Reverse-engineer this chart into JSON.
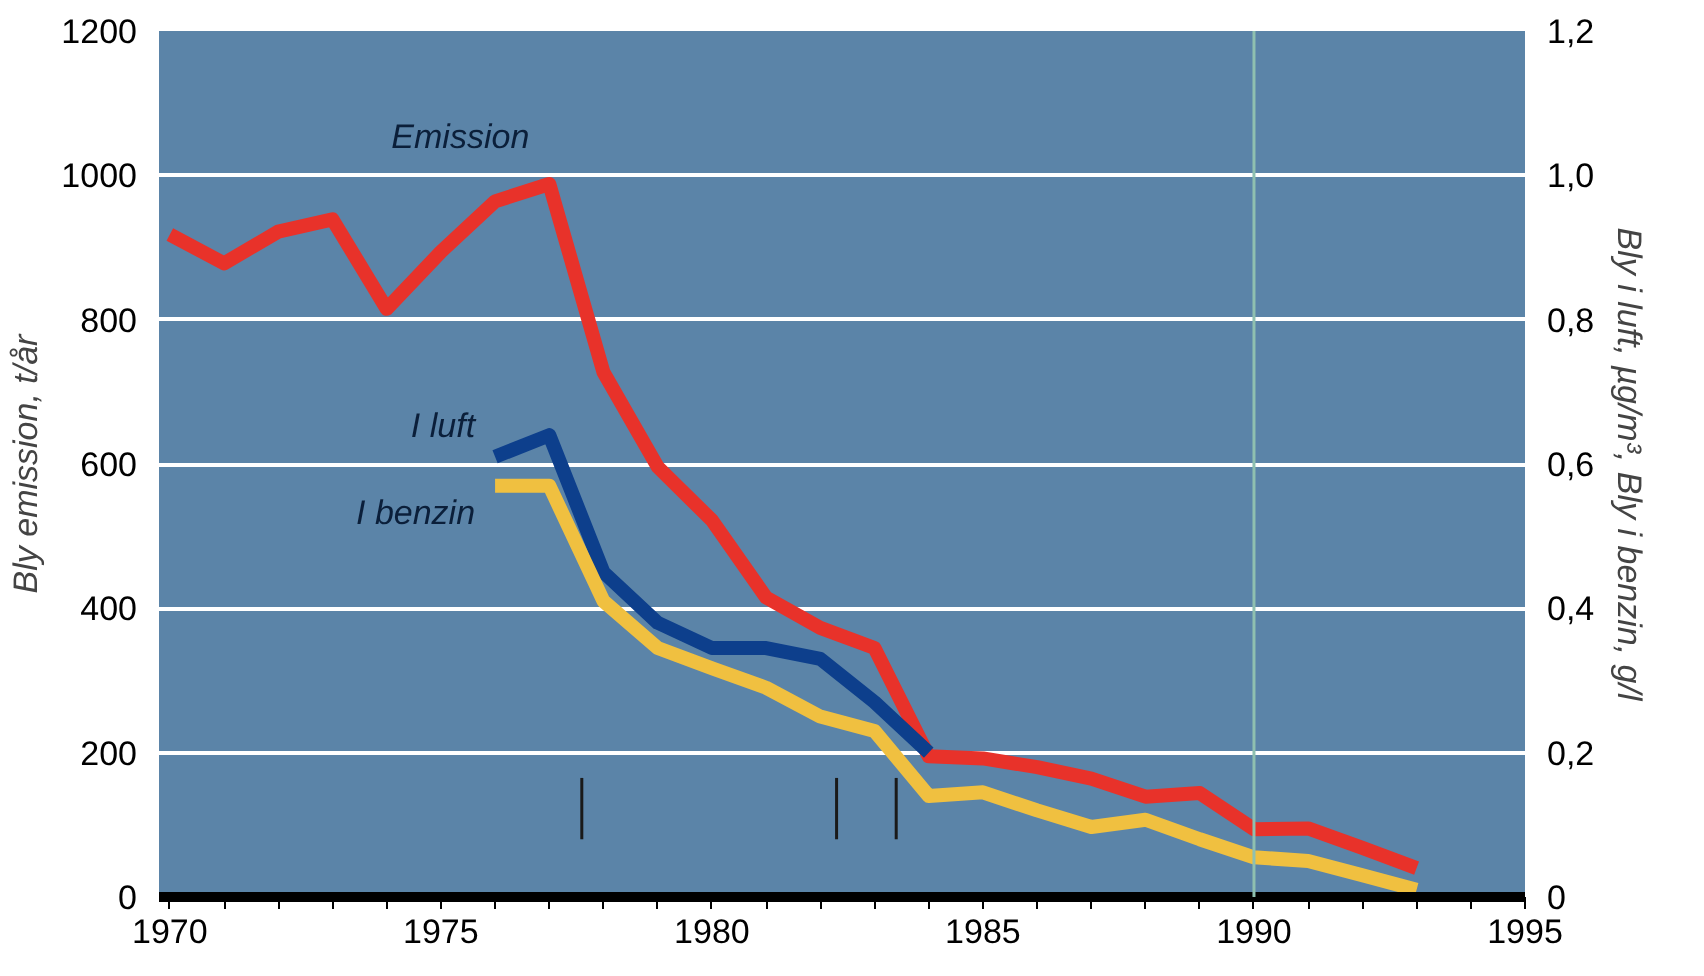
{
  "chart_data": {
    "type": "line",
    "ylabel": "Bly emission, t/år",
    "y2label": "Bly i luft, µg/m³, Bly i benzin, g/l",
    "xlim": [
      1969.8,
      1995
    ],
    "xticks": [
      1970,
      {
        "value": 1971,
        "label": null
      },
      {
        "value": 1972,
        "label": null
      },
      {
        "value": 1973,
        "label": null
      },
      {
        "value": 1974,
        "label": null
      },
      1975,
      {
        "value": 1976,
        "label": null
      },
      {
        "value": 1977,
        "label": null
      },
      {
        "value": 1978,
        "label": null
      },
      {
        "value": 1979,
        "label": null
      },
      1980,
      {
        "value": 1981,
        "label": null
      },
      {
        "value": 1982,
        "label": null
      },
      {
        "value": 1983,
        "label": null
      },
      {
        "value": 1984,
        "label": null
      },
      1985,
      {
        "value": 1986,
        "label": null
      },
      {
        "value": 1987,
        "label": null
      },
      {
        "value": 1988,
        "label": null
      },
      {
        "value": 1989,
        "label": null
      },
      1990,
      {
        "value": 1991,
        "label": null
      },
      {
        "value": 1992,
        "label": null
      },
      {
        "value": 1993,
        "label": null
      },
      {
        "value": 1994,
        "label": null
      },
      1995
    ],
    "ylim": [
      0,
      1200
    ],
    "yticks": [
      0,
      200,
      400,
      600,
      800,
      1000,
      1200
    ],
    "y2lim": [
      0,
      1.2
    ],
    "y2ticks": [
      0,
      {
        "value": 0.2,
        "label": "0,2"
      },
      {
        "value": 0.4,
        "label": "0,4"
      },
      {
        "value": 0.6,
        "label": "0,6"
      },
      {
        "value": 0.8,
        "label": "0,8"
      },
      {
        "value": 1.0,
        "label": "1,0"
      },
      {
        "value": 1.2,
        "label": "1,2"
      }
    ],
    "grid": "y",
    "line_style": "solid",
    "marker": "none",
    "series": [
      {
        "name": "Emission",
        "color": "#e8322a",
        "x": [
          1970,
          1971,
          1972,
          1973,
          1974,
          1975,
          1976,
          1977,
          1978,
          1979,
          1980,
          1981,
          1982,
          1983,
          1984,
          1985,
          1986,
          1987,
          1988,
          1989,
          1990,
          1991,
          1992,
          1993
        ],
        "values": [
          918,
          878,
          922,
          939,
          815,
          894,
          964,
          988,
          727,
          596,
          522,
          415,
          373,
          345,
          195,
          192,
          180,
          164,
          139,
          144,
          94,
          95,
          68,
          40
        ]
      },
      {
        "name": "I luft",
        "color": "#0d3f8c",
        "axis": "y2",
        "x": [
          1976,
          1977,
          1978,
          1979,
          1980,
          1981,
          1982,
          1983,
          1984
        ],
        "values": [
          0.61,
          0.64,
          0.45,
          0.38,
          0.345,
          0.345,
          0.33,
          0.27,
          0.2
        ]
      },
      {
        "name": "I benzin",
        "color": "#f0c040",
        "axis": "y2",
        "x": [
          1976,
          1977,
          1978,
          1979,
          1980,
          1981,
          1982,
          1983,
          1984,
          1985,
          1986,
          1987,
          1988,
          1989,
          1990,
          1991,
          1992,
          1993
        ],
        "values": [
          0.57,
          0.57,
          0.41,
          0.345,
          0.317,
          0.29,
          0.25,
          0.23,
          0.14,
          0.145,
          0.12,
          0.097,
          0.107,
          0.08,
          0.055,
          0.05,
          0.03,
          0.01
        ]
      },
      {
        "type": "line",
        "color": "#1a1a1a",
        "x": [
          1977.6,
          1977.6
        ],
        "values": [
          80,
          165
        ]
      },
      {
        "type": "line",
        "color": "#1a1a1a",
        "x": [
          1982.3,
          1982.3
        ],
        "values": [
          80,
          165
        ]
      },
      {
        "type": "line",
        "color": "#1a1a1a",
        "x": [
          1983.4,
          1983.4
        ],
        "values": [
          80,
          165
        ]
      }
    ],
    "ref_lines": [
      {
        "axis": "x",
        "value": 1990,
        "color": "#8fc0b0"
      }
    ]
  }
}
